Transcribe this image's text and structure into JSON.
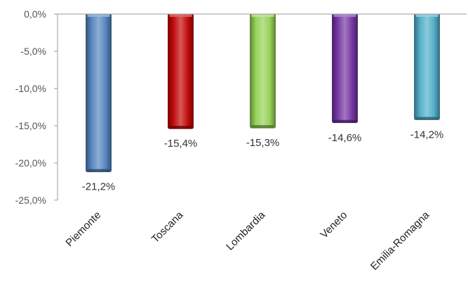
{
  "chart_data": {
    "type": "bar",
    "categories": [
      "Piemonte",
      "Toscana",
      "Lombardia",
      "Veneto",
      "Emilia-Romagna"
    ],
    "values": [
      -21.2,
      -15.4,
      -15.3,
      -14.6,
      -14.2
    ],
    "data_labels": [
      "-21,2%",
      "-15,4%",
      "-15,3%",
      "-14,6%",
      "-14,2%"
    ],
    "colors": [
      "#4f81bd",
      "#c00000",
      "#92d050",
      "#7030a0",
      "#4bacc6"
    ],
    "y_ticks": [
      0,
      -5,
      -10,
      -15,
      -20,
      -25
    ],
    "y_tick_labels": [
      "0,0%",
      "-5,0%",
      "-10,0%",
      "-15,0%",
      "-20,0%",
      "-25,0%"
    ],
    "ylim": [
      -25,
      0
    ],
    "grid": false,
    "legend": "none"
  }
}
